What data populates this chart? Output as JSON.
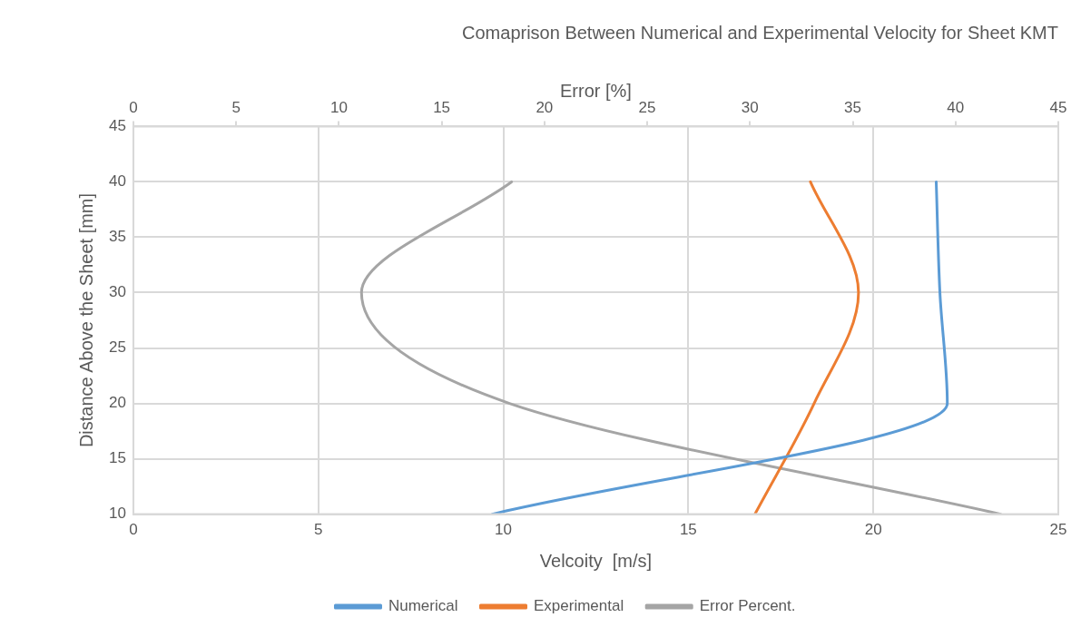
{
  "chart_data": {
    "type": "line",
    "title": "Comaprison Between Numerical and Experimental Velocity for Sheet KMT",
    "xlabel": "Velcoity  [m/s]",
    "x2label": "Error [%]",
    "ylabel": "Distance Above the Sheet [mm]",
    "series": [
      {
        "name": "Numerical",
        "color": "#5b9bd5",
        "x": [
          9.7,
          22.0,
          21.8,
          21.7
        ],
        "values": [
          10,
          20,
          30,
          40
        ]
      },
      {
        "name": "Experimental",
        "color": "#ed7d31",
        "x": [
          16.8,
          18.4,
          19.6,
          18.3
        ],
        "values": [
          10,
          20,
          30,
          40
        ]
      },
      {
        "name": "Error Percent.",
        "color": "#a5a5a5",
        "axis": "x2",
        "x": [
          42.2,
          18.3,
          11.1,
          18.4
        ],
        "values": [
          10,
          20,
          30,
          40
        ]
      }
    ],
    "xlim": [
      0,
      25
    ],
    "xticks": [
      0,
      5,
      10,
      15,
      20,
      25
    ],
    "x2lim": [
      0,
      45
    ],
    "x2ticks": [
      0,
      5,
      10,
      15,
      20,
      25,
      30,
      35,
      40,
      45
    ],
    "ylim": [
      10,
      45
    ],
    "yticks": [
      10,
      15,
      20,
      25,
      30,
      35,
      40,
      45
    ],
    "grid": true,
    "legend": "bottom",
    "marker": "none",
    "line_style": "solid"
  }
}
